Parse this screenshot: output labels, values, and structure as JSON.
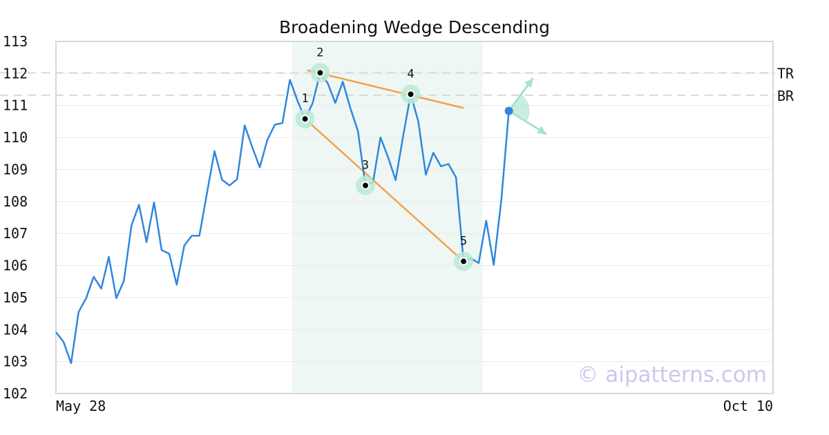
{
  "chart_data": {
    "type": "line",
    "title": "Broadening Wedge Descending",
    "watermark": "© aipatterns.com",
    "x_tick_labels": [
      "May 28",
      "Oct 10"
    ],
    "ylim": [
      102,
      113
    ],
    "y_ticks": [
      102,
      103,
      104,
      105,
      106,
      107,
      108,
      109,
      110,
      111,
      112,
      113
    ],
    "grid": true,
    "colors": {
      "price": "#2e86de",
      "trend": "#f4a04a",
      "marker_halo": "#b9ead3",
      "pattern_zone": "#eef7f3",
      "level": "#d9d9d9",
      "arrow": "#a6e3c8",
      "last_point": "#2e86de"
    },
    "series": [
      {
        "values": [
          103.92,
          103.62,
          102.95,
          104.55,
          104.98,
          105.65,
          105.28,
          106.27,
          104.98,
          105.52,
          107.25,
          107.9,
          106.73,
          107.97,
          106.48,
          106.37,
          105.4,
          106.62,
          106.93,
          106.93,
          108.25,
          109.57,
          108.68,
          108.5,
          108.7,
          110.38,
          109.7,
          109.07,
          109.92,
          110.4,
          110.45,
          111.8,
          111.15,
          110.58,
          111.07,
          112.02,
          111.7,
          111.08,
          111.74,
          110.92,
          110.2,
          108.5,
          108.6,
          110.0,
          109.38,
          108.67,
          110.05,
          111.35,
          110.5,
          108.84,
          109.52,
          109.1,
          109.17,
          108.75,
          106.13,
          106.22,
          106.08,
          107.4,
          106.02,
          108.05,
          110.83
        ],
        "markers": [
          {
            "label": "1",
            "index": 33,
            "value": 110.58
          },
          {
            "label": "2",
            "index": 35,
            "value": 112.02
          },
          {
            "label": "3",
            "index": 41,
            "value": 108.5
          },
          {
            "label": "4",
            "index": 47,
            "value": 111.35
          },
          {
            "label": "5",
            "index": 54,
            "value": 106.13
          }
        ]
      }
    ],
    "x_count": 96,
    "pattern_zone": {
      "start_index": 31.3,
      "end_index": 56.5
    },
    "trendlines": [
      {
        "name": "upper",
        "from": [
          33.3,
          112.1
        ],
        "to": [
          54.0,
          110.92
        ]
      },
      {
        "name": "lower",
        "from": [
          33.0,
          110.58
        ],
        "to": [
          54.0,
          106.13
        ]
      }
    ],
    "levels": [
      {
        "label": "TR",
        "value": 112.02
      },
      {
        "label": "BR",
        "value": 111.32
      }
    ],
    "projection": {
      "index": 60,
      "value": 110.83,
      "up_to": [
        63.2,
        111.85
      ],
      "down_to": [
        65.0,
        110.1
      ]
    }
  }
}
